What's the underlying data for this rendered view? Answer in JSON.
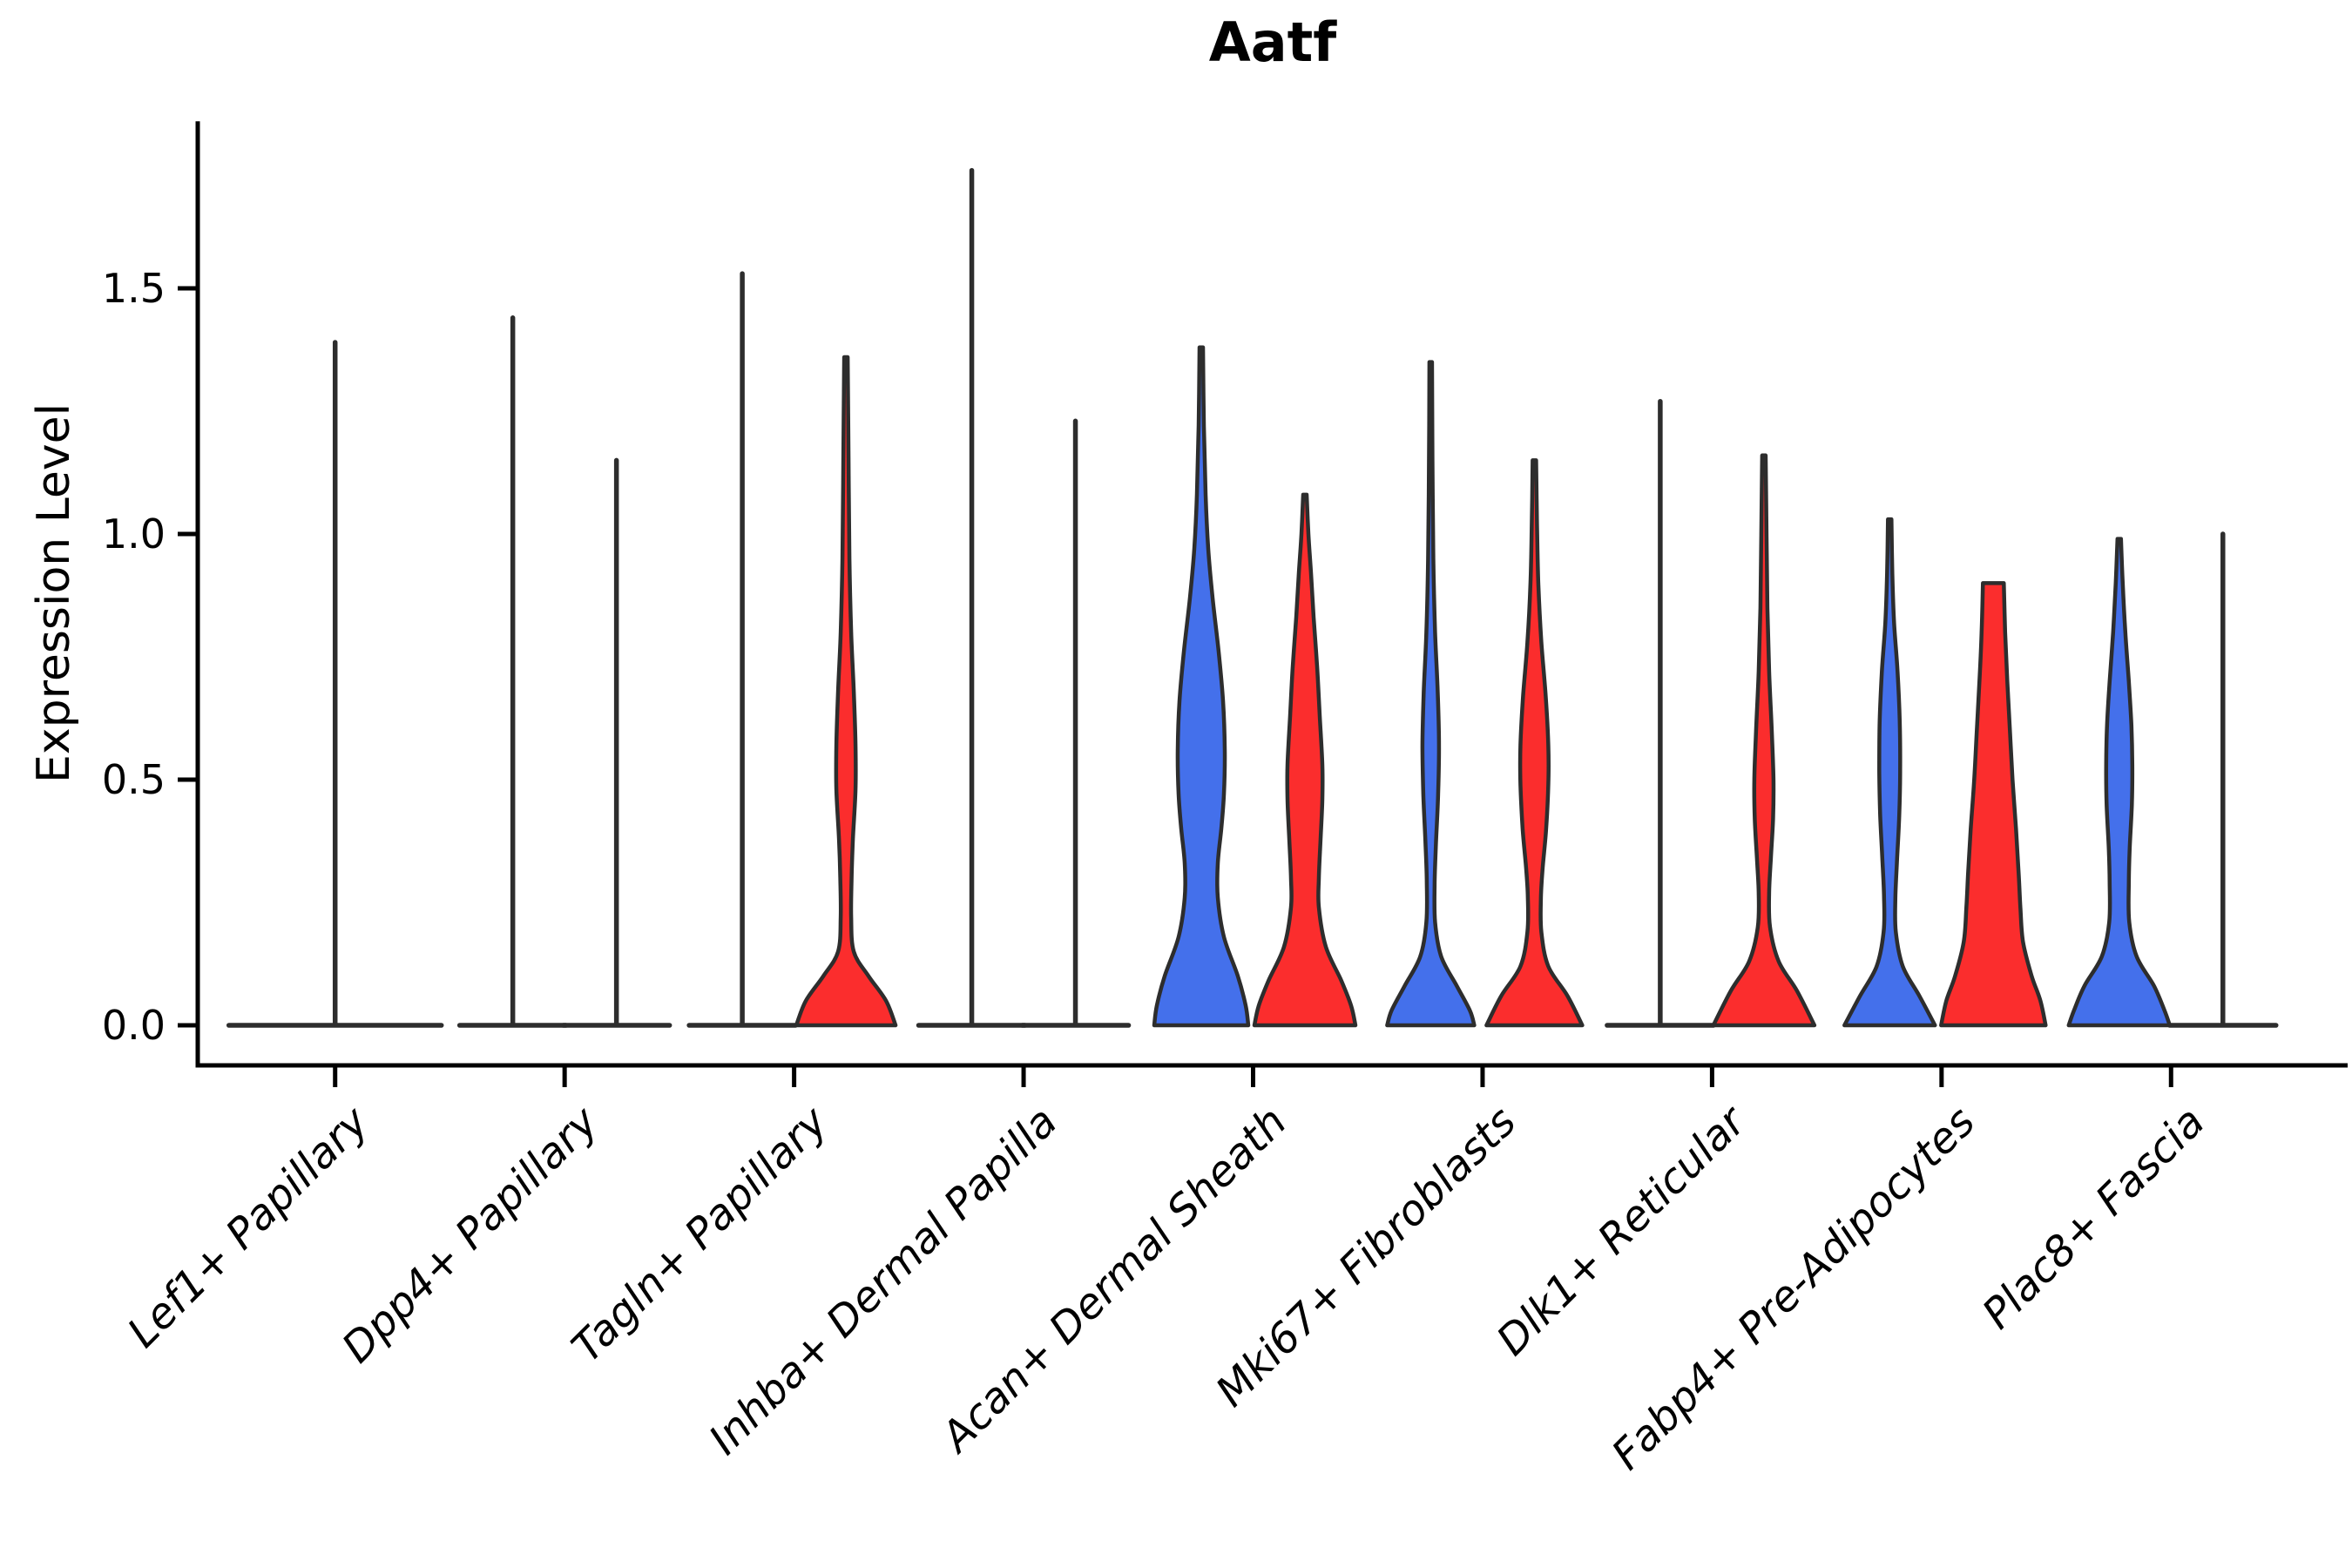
{
  "chart_data": {
    "type": "violin",
    "title": "Aatf",
    "ylabel": "Expression Level",
    "y_axis": {
      "tick_labels": [
        "0.0",
        "0.5",
        "1.0",
        "1.5"
      ],
      "tick_values": [
        0,
        0.5,
        1.0,
        1.5
      ],
      "range": [
        -0.08,
        1.84
      ],
      "grid": false,
      "legend": "none"
    },
    "colors": {
      "blue": "#4470EB",
      "red": "#FB2D2D",
      "outline": "#2D2D2D",
      "axis": "#000000",
      "text": "#000000"
    },
    "categories": [
      {
        "label": "Lef1+ Papillary",
        "violins": [
          {
            "pos": "center",
            "color": "none",
            "kind": "collapsed",
            "max": 1.39
          }
        ]
      },
      {
        "label": "Dpp4+ Papillary",
        "violins": [
          {
            "pos": "left",
            "color": "none",
            "kind": "collapsed",
            "max": 1.44
          },
          {
            "pos": "right",
            "color": "none",
            "kind": "collapsed",
            "max": 1.15
          }
        ]
      },
      {
        "label": "Tagln+ Papillary",
        "violins": [
          {
            "pos": "left",
            "color": "none",
            "kind": "collapsed",
            "max": 1.53
          },
          {
            "pos": "right",
            "color": "red",
            "kind": "shaped",
            "max": 1.36,
            "profile": [
              [
                1.36,
                2
              ],
              [
                1.15,
                3
              ],
              [
                0.95,
                4
              ],
              [
                0.8,
                6
              ],
              [
                0.68,
                9
              ],
              [
                0.57,
                11
              ],
              [
                0.48,
                11
              ],
              [
                0.38,
                8
              ],
              [
                0.3,
                6.5
              ],
              [
                0.22,
                6
              ],
              [
                0.15,
                9
              ],
              [
                0.1,
                26
              ],
              [
                0.05,
                46
              ],
              [
                0,
                57
              ]
            ]
          }
        ]
      },
      {
        "label": "Inhba+ Dermal Papilla",
        "violins": [
          {
            "pos": "left",
            "color": "none",
            "kind": "collapsed",
            "max": 1.74
          },
          {
            "pos": "right",
            "color": "none",
            "kind": "collapsed",
            "max": 1.23
          }
        ]
      },
      {
        "label": "Acan+ Dermal Sheath",
        "violins": [
          {
            "pos": "left",
            "color": "blue",
            "kind": "shaped",
            "max": 1.38,
            "profile": [
              [
                1.38,
                2
              ],
              [
                1.22,
                3
              ],
              [
                1.08,
                5
              ],
              [
                0.97,
                8
              ],
              [
                0.87,
                13
              ],
              [
                0.76,
                20
              ],
              [
                0.66,
                25
              ],
              [
                0.56,
                27
              ],
              [
                0.47,
                26
              ],
              [
                0.4,
                23
              ],
              [
                0.33,
                19
              ],
              [
                0.26,
                19
              ],
              [
                0.18,
                26
              ],
              [
                0.1,
                42
              ],
              [
                0.04,
                51
              ],
              [
                0,
                54
              ]
            ]
          },
          {
            "pos": "right",
            "color": "red",
            "kind": "shaped",
            "max": 1.08,
            "profile": [
              [
                1.08,
                2
              ],
              [
                1.0,
                4
              ],
              [
                0.92,
                7
              ],
              [
                0.83,
                10
              ],
              [
                0.73,
                14
              ],
              [
                0.63,
                17
              ],
              [
                0.53,
                20
              ],
              [
                0.46,
                20
              ],
              [
                0.38,
                18
              ],
              [
                0.3,
                16
              ],
              [
                0.24,
                16
              ],
              [
                0.16,
                24
              ],
              [
                0.09,
                42
              ],
              [
                0.04,
                53
              ],
              [
                0,
                58
              ]
            ]
          }
        ]
      },
      {
        "label": "Mki67+ Fibroblasts",
        "violins": [
          {
            "pos": "left",
            "color": "blue",
            "kind": "shaped",
            "max": 1.35,
            "profile": [
              [
                1.35,
                1.5
              ],
              [
                1.15,
                2
              ],
              [
                0.95,
                3
              ],
              [
                0.8,
                5
              ],
              [
                0.68,
                8
              ],
              [
                0.57,
                9.5
              ],
              [
                0.47,
                8.5
              ],
              [
                0.37,
                6
              ],
              [
                0.29,
                4.5
              ],
              [
                0.21,
                5
              ],
              [
                0.14,
                12
              ],
              [
                0.08,
                30
              ],
              [
                0.03,
                45
              ],
              [
                0,
                50
              ]
            ]
          },
          {
            "pos": "right",
            "color": "red",
            "kind": "shaped",
            "max": 1.15,
            "profile": [
              [
                1.15,
                2
              ],
              [
                1.02,
                3
              ],
              [
                0.9,
                4.5
              ],
              [
                0.78,
                8
              ],
              [
                0.67,
                13
              ],
              [
                0.57,
                16
              ],
              [
                0.49,
                16
              ],
              [
                0.4,
                13.5
              ],
              [
                0.32,
                9.5
              ],
              [
                0.26,
                7.5
              ],
              [
                0.19,
                8
              ],
              [
                0.12,
                16
              ],
              [
                0.06,
                38
              ],
              [
                0,
                55
              ]
            ]
          }
        ]
      },
      {
        "label": "Dlk1+ Reticular",
        "violins": [
          {
            "pos": "left",
            "color": "none",
            "kind": "collapsed",
            "max": 1.27
          },
          {
            "pos": "right",
            "color": "red",
            "kind": "shaped",
            "max": 1.16,
            "profile": [
              [
                1.16,
                2
              ],
              [
                1.0,
                3
              ],
              [
                0.85,
                4
              ],
              [
                0.72,
                6
              ],
              [
                0.6,
                9
              ],
              [
                0.5,
                11
              ],
              [
                0.42,
                10.5
              ],
              [
                0.34,
                8
              ],
              [
                0.27,
                6
              ],
              [
                0.2,
                7
              ],
              [
                0.13,
                17
              ],
              [
                0.07,
                38
              ],
              [
                0,
                58
              ]
            ]
          }
        ]
      },
      {
        "label": "Fabp4+ Pre-Adipocytes",
        "violins": [
          {
            "pos": "left",
            "color": "blue",
            "kind": "shaped",
            "max": 1.03,
            "profile": [
              [
                1.03,
                2
              ],
              [
                0.92,
                3
              ],
              [
                0.82,
                5
              ],
              [
                0.72,
                9
              ],
              [
                0.62,
                11.5
              ],
              [
                0.52,
                12
              ],
              [
                0.43,
                11
              ],
              [
                0.34,
                8.5
              ],
              [
                0.26,
                6.5
              ],
              [
                0.19,
                7
              ],
              [
                0.12,
                15
              ],
              [
                0.06,
                34
              ],
              [
                0,
                52
              ]
            ]
          },
          {
            "pos": "right",
            "color": "red",
            "kind": "shaped",
            "max": 0.9,
            "profile": [
              [
                0.9,
                12
              ],
              [
                0.8,
                13.5
              ],
              [
                0.7,
                16
              ],
              [
                0.6,
                19
              ],
              [
                0.5,
                22
              ],
              [
                0.4,
                26
              ],
              [
                0.31,
                29
              ],
              [
                0.24,
                31
              ],
              [
                0.17,
                34
              ],
              [
                0.1,
                44
              ],
              [
                0.05,
                54
              ],
              [
                0,
                60
              ]
            ]
          }
        ]
      },
      {
        "label": "Plac8+ Fascia",
        "violins": [
          {
            "pos": "left",
            "color": "blue",
            "kind": "shaped",
            "max": 0.99,
            "profile": [
              [
                0.99,
                2
              ],
              [
                0.9,
                4
              ],
              [
                0.8,
                7
              ],
              [
                0.7,
                11
              ],
              [
                0.61,
                14
              ],
              [
                0.53,
                15
              ],
              [
                0.45,
                14.5
              ],
              [
                0.36,
                12
              ],
              [
                0.29,
                11
              ],
              [
                0.21,
                11.5
              ],
              [
                0.14,
                20
              ],
              [
                0.08,
                40
              ],
              [
                0.03,
                52
              ],
              [
                0,
                58
              ]
            ]
          },
          {
            "pos": "right",
            "color": "none",
            "kind": "collapsed",
            "max": 1.0
          }
        ]
      }
    ],
    "layout_hints": {
      "pair_offset": 59.5,
      "collapsed_half_width": 61,
      "single_half_width": 122,
      "legend_position": "none"
    }
  }
}
